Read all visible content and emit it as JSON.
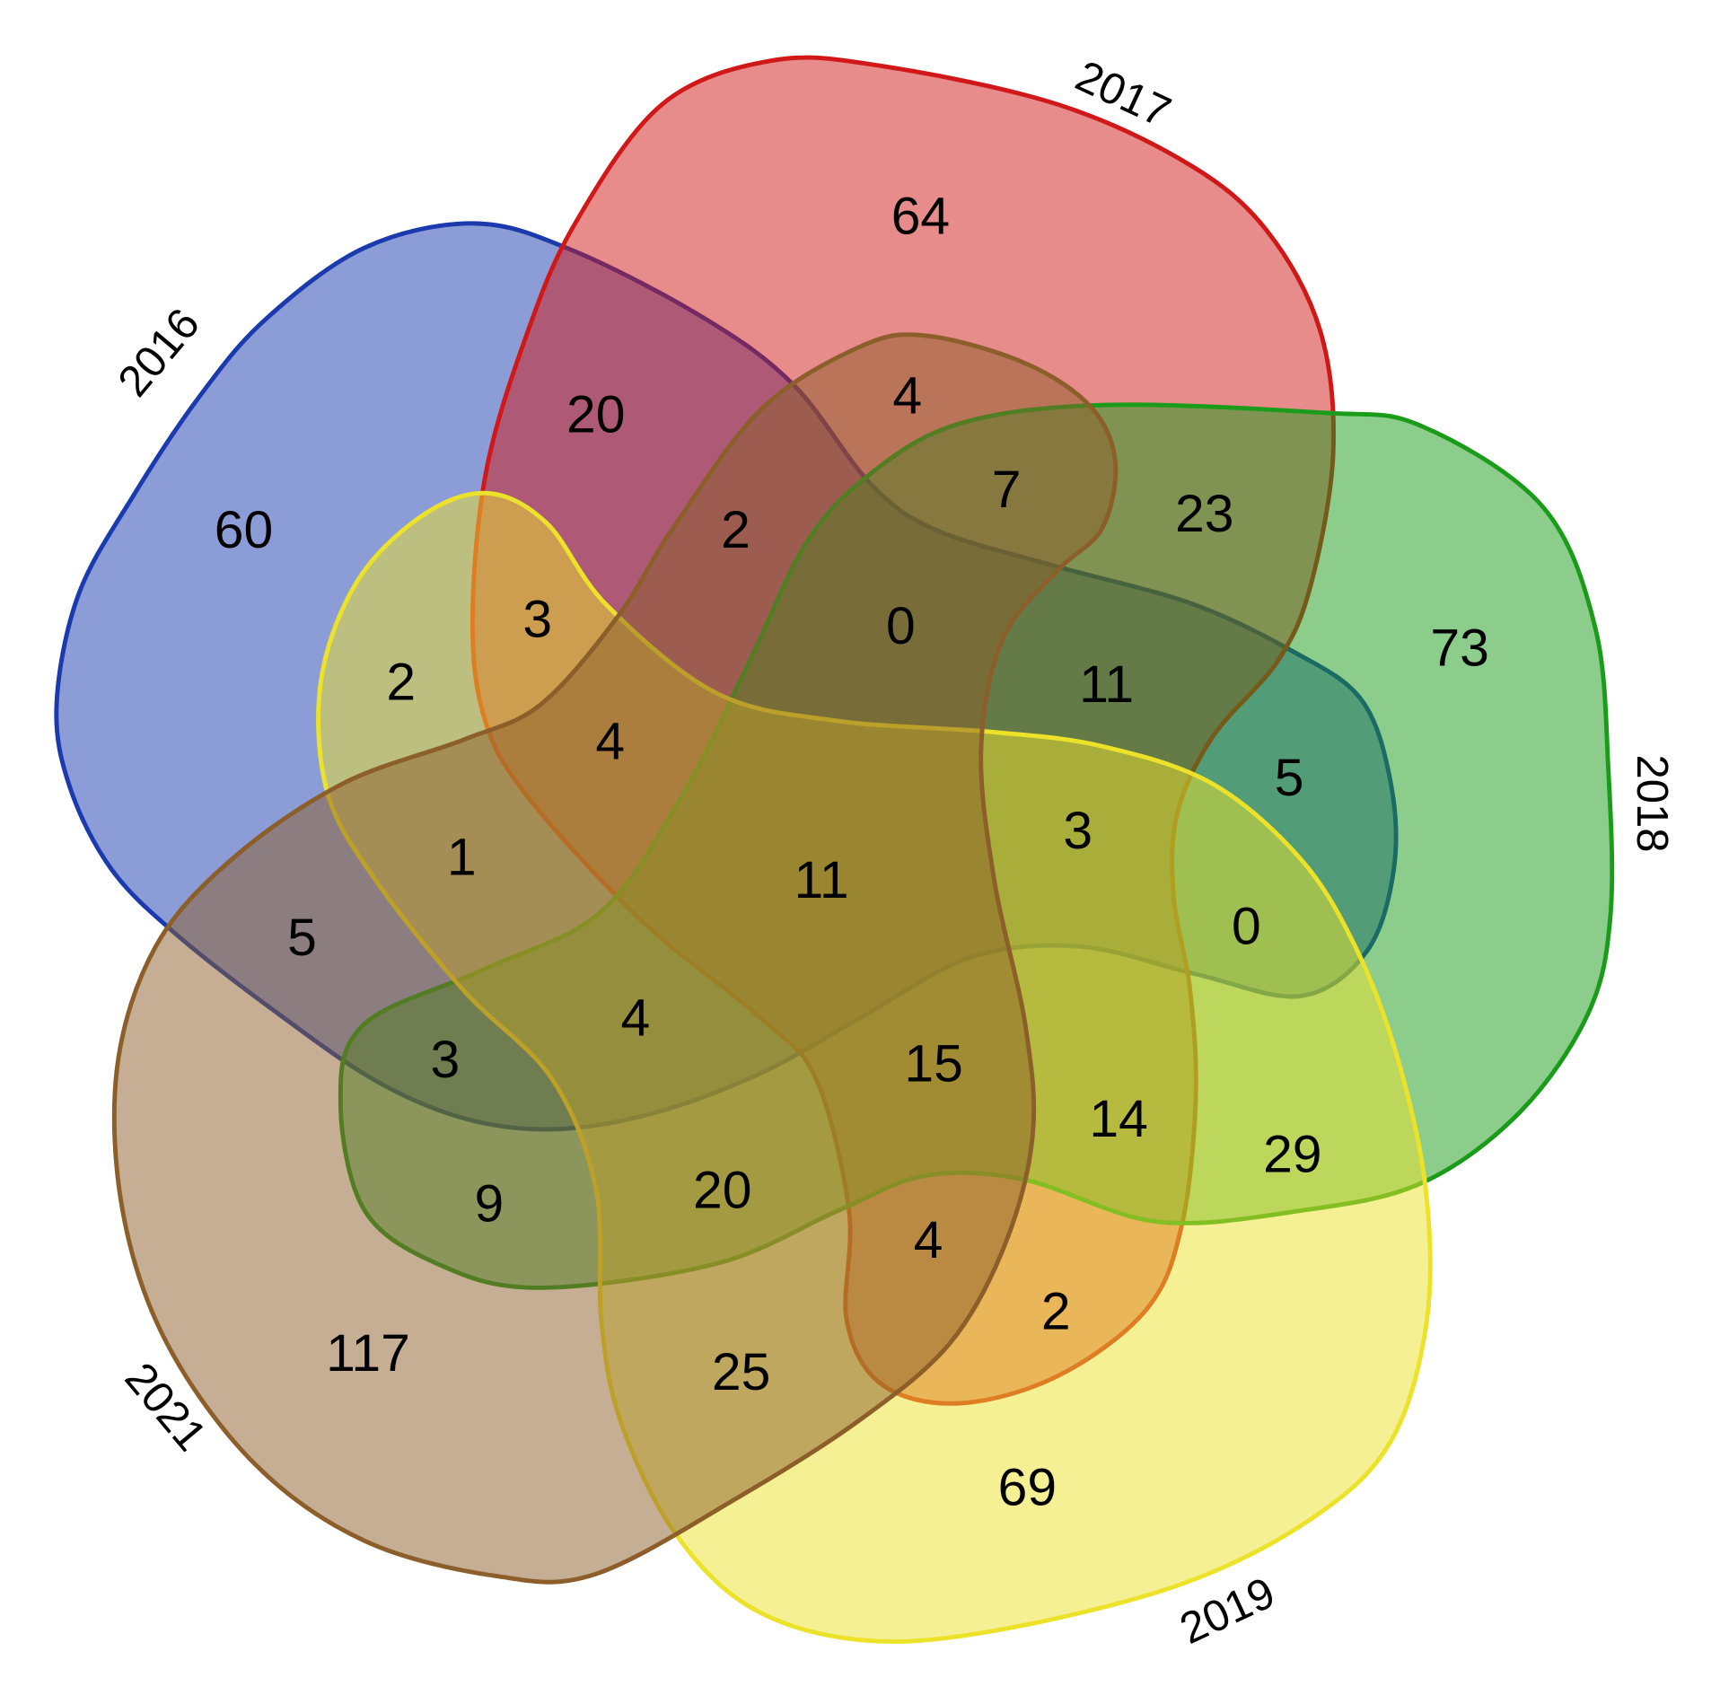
{
  "sets": [
    {
      "name": "2016",
      "color": "#1a3aad"
    },
    {
      "name": "2017",
      "color": "#d01818"
    },
    {
      "name": "2018",
      "color": "#1a9c1a"
    },
    {
      "name": "2019",
      "color": "#ece22a"
    },
    {
      "name": "2021",
      "color": "#8b5e2a"
    }
  ],
  "regions": [
    {
      "count": "60"
    },
    {
      "count": "64"
    },
    {
      "count": "73"
    },
    {
      "count": "69"
    },
    {
      "count": "117"
    },
    {
      "count": "20"
    },
    {
      "count": "4"
    },
    {
      "count": "7"
    },
    {
      "count": "23"
    },
    {
      "count": "2"
    },
    {
      "count": "0"
    },
    {
      "count": "3"
    },
    {
      "count": "2"
    },
    {
      "count": "11"
    },
    {
      "count": "4"
    },
    {
      "count": "5"
    },
    {
      "count": "3"
    },
    {
      "count": "1"
    },
    {
      "count": "11"
    },
    {
      "count": "0"
    },
    {
      "count": "5"
    },
    {
      "count": "4"
    },
    {
      "count": "15"
    },
    {
      "count": "3"
    },
    {
      "count": "14"
    },
    {
      "count": "29"
    },
    {
      "count": "9"
    },
    {
      "count": "20"
    },
    {
      "count": "4"
    },
    {
      "count": "2"
    },
    {
      "count": "25"
    }
  ]
}
